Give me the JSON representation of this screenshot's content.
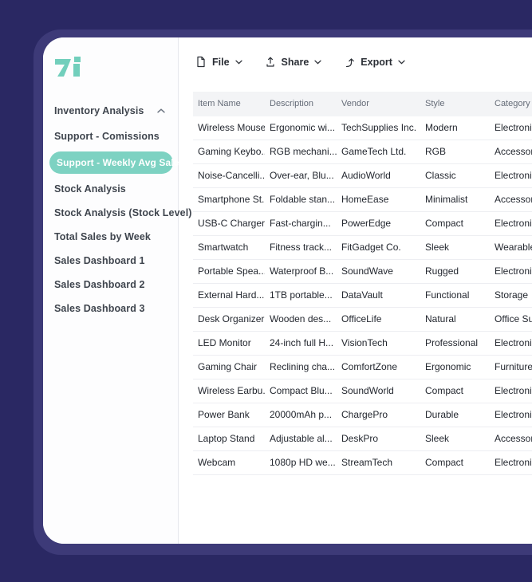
{
  "colors": {
    "background": "#2a2863",
    "card_glow": "#3d3a78",
    "card": "#ffffff",
    "accent_teal": "#7dd2c2",
    "active_item_text": "#ffffff",
    "header_bg": "#f3f4f6",
    "header_text": "#656c78",
    "cell_text": "#23272f",
    "sidebar_text": "#3f454e"
  },
  "logo": {
    "name": "teal-arrow-logo",
    "color": "#72cfbc"
  },
  "toolbar": {
    "buttons": [
      {
        "label": "File",
        "icon": "file-icon",
        "chevron": "chevron-down-icon"
      },
      {
        "label": "Share",
        "icon": "share-icon",
        "chevron": "chevron-down-icon"
      },
      {
        "label": "Export",
        "icon": "export-icon",
        "chevron": "chevron-down-icon"
      }
    ]
  },
  "sidebar": {
    "items": [
      {
        "label": "Inventory Analysis",
        "group_header": true,
        "chevron": "chevron-up-icon",
        "active": false
      },
      {
        "label": "Support - Comissions",
        "active": false
      },
      {
        "label": "Support - Weekly Avg Sales",
        "active": true
      },
      {
        "label": "Stock Analysis",
        "active": false
      },
      {
        "label": "Stock Analysis (Stock Level)",
        "active": false
      },
      {
        "label": "Total Sales by Week",
        "active": false
      },
      {
        "label": "Sales Dashboard 1",
        "active": false
      },
      {
        "label": "Sales Dashboard 2",
        "active": false
      },
      {
        "label": "Sales Dashboard 3",
        "active": false
      }
    ]
  },
  "table": {
    "columns": [
      "Item Name",
      "Description",
      "Vendor",
      "Style",
      "Category"
    ],
    "rows": [
      [
        "Wireless Mouse",
        "Ergonomic wi...",
        "TechSupplies Inc.",
        "Modern",
        "Electronics"
      ],
      [
        "Gaming Keybo...",
        "RGB mechani...",
        "GameTech Ltd.",
        "RGB",
        "Accessories"
      ],
      [
        "Noise-Cancelli...",
        "Over-ear, Blu...",
        "AudioWorld",
        "Classic",
        "Electronics"
      ],
      [
        "Smartphone St...",
        "Foldable stan...",
        "HomeEase",
        "Minimalist",
        "Accessories"
      ],
      [
        "USB-C Charger",
        "Fast-chargin...",
        "PowerEdge",
        "Compact",
        "Electronics"
      ],
      [
        "Smartwatch",
        "Fitness track...",
        "FitGadget Co.",
        "Sleek",
        "Wearables"
      ],
      [
        "Portable Spea...",
        "Waterproof B...",
        "SoundWave",
        "Rugged",
        "Electronics"
      ],
      [
        "External Hard...",
        "1TB portable...",
        "DataVault",
        "Functional",
        "Storage"
      ],
      [
        "Desk Organizer",
        "Wooden des...",
        "OfficeLife",
        "Natural",
        "Office Supplies"
      ],
      [
        "LED Monitor",
        "24-inch full H...",
        "VisionTech",
        "Professional",
        "Electronics"
      ],
      [
        "Gaming Chair",
        "Reclining cha...",
        "ComfortZone",
        "Ergonomic",
        "Furniture"
      ],
      [
        "Wireless Earbu...",
        "Compact Blu...",
        "SoundWorld",
        "Compact",
        "Electronics"
      ],
      [
        "Power Bank",
        "20000mAh p...",
        "ChargePro",
        "Durable",
        "Electronics"
      ],
      [
        "Laptop Stand",
        "Adjustable al...",
        "DeskPro",
        "Sleek",
        "Accessories"
      ],
      [
        "Webcam",
        "1080p HD we...",
        "StreamTech",
        "Compact",
        "Electronics"
      ]
    ]
  }
}
